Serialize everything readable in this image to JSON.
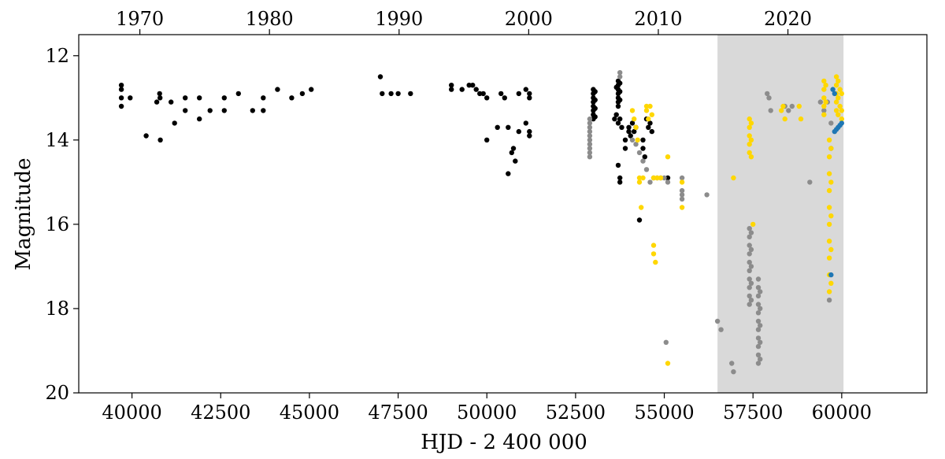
{
  "chart_data": {
    "type": "scatter",
    "xlabel": "HJD - 2 400 000",
    "ylabel": "Magnitude",
    "xlim": [
      38500,
      62400
    ],
    "ylim": [
      20,
      11.5
    ],
    "y_inverted": true,
    "x_ticks": [
      40000,
      42500,
      45000,
      47500,
      50000,
      52500,
      55000,
      57500,
      60000
    ],
    "x_tick_labels": [
      "40000",
      "42500",
      "45000",
      "47500",
      "50000",
      "52500",
      "55000",
      "57500",
      "60000"
    ],
    "y_ticks": [
      12,
      14,
      16,
      18,
      20
    ],
    "y_tick_labels": [
      "12",
      "14",
      "16",
      "18",
      "20"
    ],
    "secondary_x_axis": {
      "label": "",
      "ticks_hjd": [
        40222,
        43874,
        47527,
        51179,
        54832,
        58484
      ],
      "tick_labels": [
        "1970",
        "1980",
        "1990",
        "2000",
        "2010",
        "2020"
      ]
    },
    "shaded_region": {
      "x_start": 56500,
      "x_end": 60050,
      "color": "#d9d9d9"
    },
    "grid": false,
    "legend": "none",
    "series": [
      {
        "color": "#000000",
        "points": [
          [
            39700,
            12.7
          ],
          [
            39700,
            12.8
          ],
          [
            39700,
            13.0
          ],
          [
            39700,
            13.2
          ],
          [
            39950,
            13.0
          ],
          [
            40400,
            13.9
          ],
          [
            40700,
            13.1
          ],
          [
            40780,
            12.9
          ],
          [
            40790,
            13.0
          ],
          [
            40800,
            14.0
          ],
          [
            41100,
            13.1
          ],
          [
            41200,
            13.6
          ],
          [
            41500,
            13.0
          ],
          [
            41500,
            13.3
          ],
          [
            41900,
            13.0
          ],
          [
            41900,
            13.5
          ],
          [
            42200,
            13.3
          ],
          [
            42600,
            13.0
          ],
          [
            42600,
            13.3
          ],
          [
            43000,
            12.9
          ],
          [
            43400,
            13.3
          ],
          [
            43700,
            13.0
          ],
          [
            43700,
            13.3
          ],
          [
            44100,
            12.8
          ],
          [
            44500,
            13.0
          ],
          [
            44800,
            12.9
          ],
          [
            45050,
            12.8
          ],
          [
            47000,
            12.5
          ],
          [
            47050,
            12.9
          ],
          [
            47300,
            12.9
          ],
          [
            47500,
            12.9
          ],
          [
            47850,
            12.9
          ],
          [
            49000,
            12.7
          ],
          [
            49000,
            12.8
          ],
          [
            49300,
            12.8
          ],
          [
            49500,
            12.7
          ],
          [
            49600,
            12.7
          ],
          [
            49700,
            12.8
          ],
          [
            49800,
            12.9
          ],
          [
            49900,
            12.9
          ],
          [
            50000,
            13.0
          ],
          [
            50000,
            14.0
          ],
          [
            50300,
            13.7
          ],
          [
            50400,
            12.9
          ],
          [
            50500,
            13.0
          ],
          [
            50600,
            13.7
          ],
          [
            50600,
            14.8
          ],
          [
            50700,
            14.3
          ],
          [
            50750,
            14.2
          ],
          [
            50800,
            14.5
          ],
          [
            50900,
            13.8
          ],
          [
            50900,
            12.9
          ],
          [
            51100,
            13.6
          ],
          [
            51100,
            12.8
          ],
          [
            51200,
            12.9
          ],
          [
            51200,
            13.0
          ],
          [
            51200,
            13.8
          ],
          [
            51200,
            13.9
          ],
          [
            53000,
            12.8
          ],
          [
            53000,
            12.9
          ],
          [
            53000,
            13.0
          ],
          [
            53000,
            13.1
          ],
          [
            53000,
            13.2
          ],
          [
            53000,
            13.3
          ],
          [
            53000,
            13.4
          ],
          [
            53000,
            13.5
          ],
          [
            53050,
            12.85
          ],
          [
            53050,
            13.05
          ],
          [
            53050,
            13.25
          ],
          [
            53050,
            13.45
          ],
          [
            53700,
            12.6
          ],
          [
            53700,
            12.7
          ],
          [
            53700,
            12.8
          ],
          [
            53700,
            12.9
          ],
          [
            53700,
            13.0
          ],
          [
            53700,
            13.1
          ],
          [
            53700,
            13.2
          ],
          [
            53750,
            12.65
          ],
          [
            53750,
            12.85
          ],
          [
            53750,
            13.05
          ],
          [
            53650,
            12.75
          ],
          [
            53600,
            13.5
          ],
          [
            53650,
            13.4
          ],
          [
            53700,
            13.6
          ],
          [
            53750,
            13.5
          ],
          [
            53700,
            14.6
          ],
          [
            53750,
            14.9
          ],
          [
            53750,
            15.0
          ],
          [
            53800,
            13.7
          ],
          [
            53900,
            14.0
          ],
          [
            53900,
            14.2
          ],
          [
            54000,
            13.7
          ],
          [
            54000,
            13.8
          ],
          [
            54050,
            13.9
          ],
          [
            54100,
            13.6
          ],
          [
            54150,
            13.8
          ],
          [
            54200,
            13.7
          ],
          [
            54300,
            15.9
          ],
          [
            54400,
            14.0
          ],
          [
            54400,
            14.2
          ],
          [
            54450,
            14.4
          ],
          [
            54500,
            13.5
          ],
          [
            54550,
            13.7
          ],
          [
            54600,
            13.6
          ],
          [
            54650,
            13.8
          ],
          [
            55100,
            14.9
          ]
        ]
      },
      {
        "color": "#8c8c8c",
        "points": [
          [
            52900,
            13.5
          ],
          [
            52900,
            13.6
          ],
          [
            52900,
            13.7
          ],
          [
            52900,
            13.8
          ],
          [
            52900,
            13.9
          ],
          [
            52900,
            14.0
          ],
          [
            52900,
            14.1
          ],
          [
            52900,
            14.2
          ],
          [
            52900,
            14.3
          ],
          [
            52900,
            14.4
          ],
          [
            53750,
            12.4
          ],
          [
            53750,
            12.5
          ],
          [
            54100,
            14.0
          ],
          [
            54200,
            14.1
          ],
          [
            54300,
            14.3
          ],
          [
            54400,
            14.5
          ],
          [
            54500,
            14.7
          ],
          [
            54600,
            15.0
          ],
          [
            54700,
            14.9
          ],
          [
            54800,
            14.9
          ],
          [
            54900,
            14.9
          ],
          [
            55000,
            14.9
          ],
          [
            55100,
            15.0
          ],
          [
            55500,
            14.9
          ],
          [
            55500,
            15.2
          ],
          [
            55500,
            15.3
          ],
          [
            55500,
            15.4
          ],
          [
            55050,
            18.8
          ],
          [
            56200,
            15.3
          ],
          [
            56500,
            18.3
          ],
          [
            56600,
            18.5
          ],
          [
            56900,
            19.3
          ],
          [
            56950,
            19.5
          ],
          [
            57400,
            16.1
          ],
          [
            57400,
            16.3
          ],
          [
            57400,
            16.5
          ],
          [
            57400,
            16.7
          ],
          [
            57400,
            16.9
          ],
          [
            57400,
            17.1
          ],
          [
            57400,
            17.3
          ],
          [
            57400,
            17.5
          ],
          [
            57400,
            17.7
          ],
          [
            57400,
            17.9
          ],
          [
            57450,
            16.2
          ],
          [
            57450,
            16.6
          ],
          [
            57450,
            17.0
          ],
          [
            57450,
            17.4
          ],
          [
            57450,
            17.8
          ],
          [
            57650,
            17.3
          ],
          [
            57650,
            17.5
          ],
          [
            57650,
            17.7
          ],
          [
            57650,
            17.9
          ],
          [
            57650,
            18.1
          ],
          [
            57650,
            18.3
          ],
          [
            57650,
            18.5
          ],
          [
            57650,
            18.7
          ],
          [
            57650,
            18.9
          ],
          [
            57650,
            19.1
          ],
          [
            57650,
            19.3
          ],
          [
            57700,
            17.6
          ],
          [
            57700,
            18.0
          ],
          [
            57700,
            18.4
          ],
          [
            57700,
            18.8
          ],
          [
            57700,
            19.2
          ],
          [
            57900,
            12.9
          ],
          [
            57950,
            13.0
          ],
          [
            58000,
            13.3
          ],
          [
            58400,
            13.2
          ],
          [
            58500,
            13.3
          ],
          [
            58600,
            13.2
          ],
          [
            59100,
            15.0
          ],
          [
            59400,
            13.1
          ],
          [
            59500,
            13.3
          ],
          [
            59600,
            13.1
          ],
          [
            59650,
            17.8
          ],
          [
            59700,
            13.6
          ],
          [
            59700,
            14.2
          ]
        ]
      },
      {
        "color": "#ffd700",
        "points": [
          [
            54100,
            13.3
          ],
          [
            54150,
            13.5
          ],
          [
            54200,
            13.7
          ],
          [
            54250,
            14.0
          ],
          [
            54300,
            14.9
          ],
          [
            54300,
            15.0
          ],
          [
            54350,
            15.6
          ],
          [
            54400,
            14.9
          ],
          [
            54500,
            13.2
          ],
          [
            54500,
            13.3
          ],
          [
            54550,
            13.5
          ],
          [
            54600,
            13.2
          ],
          [
            54650,
            13.4
          ],
          [
            54700,
            16.5
          ],
          [
            54700,
            16.7
          ],
          [
            54750,
            16.9
          ],
          [
            54700,
            14.9
          ],
          [
            54800,
            14.9
          ],
          [
            54900,
            14.9
          ],
          [
            55100,
            14.4
          ],
          [
            55100,
            19.3
          ],
          [
            55500,
            15.0
          ],
          [
            55500,
            15.6
          ],
          [
            56950,
            14.9
          ],
          [
            57400,
            13.5
          ],
          [
            57400,
            13.7
          ],
          [
            57400,
            13.9
          ],
          [
            57400,
            14.1
          ],
          [
            57400,
            14.3
          ],
          [
            57450,
            13.6
          ],
          [
            57450,
            14.0
          ],
          [
            57450,
            14.4
          ],
          [
            57500,
            16.0
          ],
          [
            58300,
            13.3
          ],
          [
            58350,
            13.2
          ],
          [
            58400,
            13.5
          ],
          [
            58800,
            13.2
          ],
          [
            58850,
            13.5
          ],
          [
            59500,
            12.6
          ],
          [
            59500,
            12.8
          ],
          [
            59500,
            13.0
          ],
          [
            59500,
            13.2
          ],
          [
            59500,
            13.4
          ],
          [
            59550,
            12.7
          ],
          [
            59550,
            13.1
          ],
          [
            59650,
            14.0
          ],
          [
            59650,
            14.4
          ],
          [
            59650,
            14.8
          ],
          [
            59650,
            15.2
          ],
          [
            59650,
            15.6
          ],
          [
            59650,
            16.0
          ],
          [
            59650,
            16.4
          ],
          [
            59650,
            16.8
          ],
          [
            59650,
            17.2
          ],
          [
            59650,
            17.6
          ],
          [
            59700,
            14.2
          ],
          [
            59700,
            15.0
          ],
          [
            59700,
            15.8
          ],
          [
            59700,
            16.6
          ],
          [
            59700,
            17.4
          ],
          [
            59850,
            12.5
          ],
          [
            59850,
            12.7
          ],
          [
            59850,
            12.9
          ],
          [
            59850,
            13.1
          ],
          [
            59850,
            13.3
          ],
          [
            59900,
            12.6
          ],
          [
            59900,
            13.0
          ],
          [
            59900,
            13.4
          ],
          [
            59950,
            12.8
          ],
          [
            59950,
            13.2
          ],
          [
            60000,
            12.9
          ],
          [
            60000,
            13.3
          ],
          [
            60000,
            13.5
          ]
        ]
      },
      {
        "color": "#1f77b4",
        "points": [
          [
            59750,
            12.8
          ],
          [
            59800,
            12.9
          ],
          [
            59800,
            13.8
          ],
          [
            59850,
            13.75
          ],
          [
            59900,
            13.7
          ],
          [
            59950,
            13.65
          ],
          [
            60000,
            13.6
          ],
          [
            59700,
            17.2
          ]
        ]
      }
    ]
  }
}
